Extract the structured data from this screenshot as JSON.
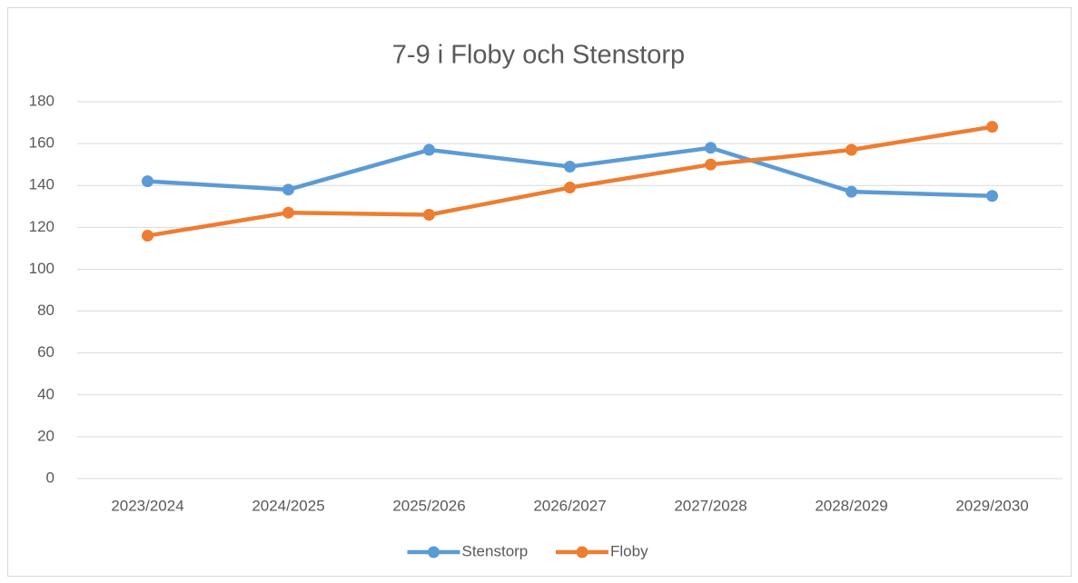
{
  "chart_data": {
    "type": "line",
    "title": "7-9 i Floby och Stenstorp",
    "categories": [
      "2023/2024",
      "2024/2025",
      "2025/2026",
      "2026/2027",
      "2027/2028",
      "2028/2029",
      "2029/2030"
    ],
    "series": [
      {
        "name": "Stenstorp",
        "color": "#5b9bd5",
        "values": [
          142,
          138,
          157,
          149,
          158,
          137,
          135
        ]
      },
      {
        "name": "Floby",
        "color": "#ed7d31",
        "values": [
          116,
          127,
          126,
          139,
          150,
          157,
          168
        ]
      }
    ],
    "ylim": [
      0,
      180
    ],
    "yticks": [
      0,
      20,
      40,
      60,
      80,
      100,
      120,
      140,
      160,
      180
    ],
    "grid": true,
    "legend": "bottom"
  }
}
